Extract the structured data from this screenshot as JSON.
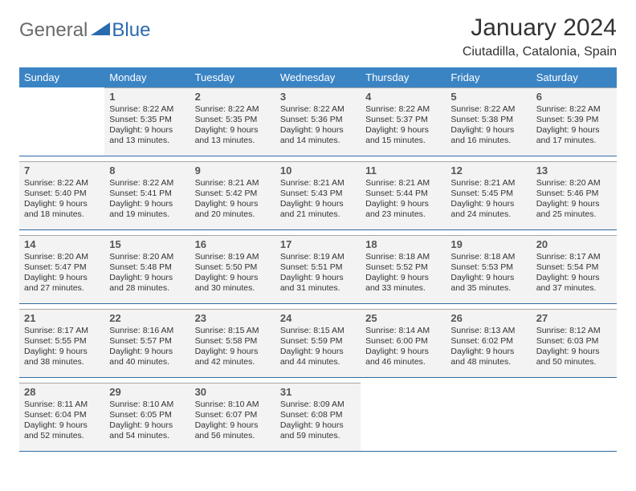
{
  "brand": {
    "general": "General",
    "blue": "Blue"
  },
  "title": "January 2024",
  "location": "Ciutadilla, Catalonia, Spain",
  "colors": {
    "header_bg": "#3b84c4",
    "header_text": "#ffffff",
    "cell_bg": "#f3f3f3",
    "cell_border_top": "#a7a7a7",
    "cell_border_bottom": "#2f6aa3",
    "text": "#333333",
    "logo_gray": "#6a6a6a",
    "logo_blue": "#2a6bb0"
  },
  "dayNames": [
    "Sunday",
    "Monday",
    "Tuesday",
    "Wednesday",
    "Thursday",
    "Friday",
    "Saturday"
  ],
  "weeks": [
    [
      null,
      {
        "n": "1",
        "sr": "Sunrise: 8:22 AM",
        "ss": "Sunset: 5:35 PM",
        "d1": "Daylight: 9 hours",
        "d2": "and 13 minutes."
      },
      {
        "n": "2",
        "sr": "Sunrise: 8:22 AM",
        "ss": "Sunset: 5:35 PM",
        "d1": "Daylight: 9 hours",
        "d2": "and 13 minutes."
      },
      {
        "n": "3",
        "sr": "Sunrise: 8:22 AM",
        "ss": "Sunset: 5:36 PM",
        "d1": "Daylight: 9 hours",
        "d2": "and 14 minutes."
      },
      {
        "n": "4",
        "sr": "Sunrise: 8:22 AM",
        "ss": "Sunset: 5:37 PM",
        "d1": "Daylight: 9 hours",
        "d2": "and 15 minutes."
      },
      {
        "n": "5",
        "sr": "Sunrise: 8:22 AM",
        "ss": "Sunset: 5:38 PM",
        "d1": "Daylight: 9 hours",
        "d2": "and 16 minutes."
      },
      {
        "n": "6",
        "sr": "Sunrise: 8:22 AM",
        "ss": "Sunset: 5:39 PM",
        "d1": "Daylight: 9 hours",
        "d2": "and 17 minutes."
      }
    ],
    [
      {
        "n": "7",
        "sr": "Sunrise: 8:22 AM",
        "ss": "Sunset: 5:40 PM",
        "d1": "Daylight: 9 hours",
        "d2": "and 18 minutes."
      },
      {
        "n": "8",
        "sr": "Sunrise: 8:22 AM",
        "ss": "Sunset: 5:41 PM",
        "d1": "Daylight: 9 hours",
        "d2": "and 19 minutes."
      },
      {
        "n": "9",
        "sr": "Sunrise: 8:21 AM",
        "ss": "Sunset: 5:42 PM",
        "d1": "Daylight: 9 hours",
        "d2": "and 20 minutes."
      },
      {
        "n": "10",
        "sr": "Sunrise: 8:21 AM",
        "ss": "Sunset: 5:43 PM",
        "d1": "Daylight: 9 hours",
        "d2": "and 21 minutes."
      },
      {
        "n": "11",
        "sr": "Sunrise: 8:21 AM",
        "ss": "Sunset: 5:44 PM",
        "d1": "Daylight: 9 hours",
        "d2": "and 23 minutes."
      },
      {
        "n": "12",
        "sr": "Sunrise: 8:21 AM",
        "ss": "Sunset: 5:45 PM",
        "d1": "Daylight: 9 hours",
        "d2": "and 24 minutes."
      },
      {
        "n": "13",
        "sr": "Sunrise: 8:20 AM",
        "ss": "Sunset: 5:46 PM",
        "d1": "Daylight: 9 hours",
        "d2": "and 25 minutes."
      }
    ],
    [
      {
        "n": "14",
        "sr": "Sunrise: 8:20 AM",
        "ss": "Sunset: 5:47 PM",
        "d1": "Daylight: 9 hours",
        "d2": "and 27 minutes."
      },
      {
        "n": "15",
        "sr": "Sunrise: 8:20 AM",
        "ss": "Sunset: 5:48 PM",
        "d1": "Daylight: 9 hours",
        "d2": "and 28 minutes."
      },
      {
        "n": "16",
        "sr": "Sunrise: 8:19 AM",
        "ss": "Sunset: 5:50 PM",
        "d1": "Daylight: 9 hours",
        "d2": "and 30 minutes."
      },
      {
        "n": "17",
        "sr": "Sunrise: 8:19 AM",
        "ss": "Sunset: 5:51 PM",
        "d1": "Daylight: 9 hours",
        "d2": "and 31 minutes."
      },
      {
        "n": "18",
        "sr": "Sunrise: 8:18 AM",
        "ss": "Sunset: 5:52 PM",
        "d1": "Daylight: 9 hours",
        "d2": "and 33 minutes."
      },
      {
        "n": "19",
        "sr": "Sunrise: 8:18 AM",
        "ss": "Sunset: 5:53 PM",
        "d1": "Daylight: 9 hours",
        "d2": "and 35 minutes."
      },
      {
        "n": "20",
        "sr": "Sunrise: 8:17 AM",
        "ss": "Sunset: 5:54 PM",
        "d1": "Daylight: 9 hours",
        "d2": "and 37 minutes."
      }
    ],
    [
      {
        "n": "21",
        "sr": "Sunrise: 8:17 AM",
        "ss": "Sunset: 5:55 PM",
        "d1": "Daylight: 9 hours",
        "d2": "and 38 minutes."
      },
      {
        "n": "22",
        "sr": "Sunrise: 8:16 AM",
        "ss": "Sunset: 5:57 PM",
        "d1": "Daylight: 9 hours",
        "d2": "and 40 minutes."
      },
      {
        "n": "23",
        "sr": "Sunrise: 8:15 AM",
        "ss": "Sunset: 5:58 PM",
        "d1": "Daylight: 9 hours",
        "d2": "and 42 minutes."
      },
      {
        "n": "24",
        "sr": "Sunrise: 8:15 AM",
        "ss": "Sunset: 5:59 PM",
        "d1": "Daylight: 9 hours",
        "d2": "and 44 minutes."
      },
      {
        "n": "25",
        "sr": "Sunrise: 8:14 AM",
        "ss": "Sunset: 6:00 PM",
        "d1": "Daylight: 9 hours",
        "d2": "and 46 minutes."
      },
      {
        "n": "26",
        "sr": "Sunrise: 8:13 AM",
        "ss": "Sunset: 6:02 PM",
        "d1": "Daylight: 9 hours",
        "d2": "and 48 minutes."
      },
      {
        "n": "27",
        "sr": "Sunrise: 8:12 AM",
        "ss": "Sunset: 6:03 PM",
        "d1": "Daylight: 9 hours",
        "d2": "and 50 minutes."
      }
    ],
    [
      {
        "n": "28",
        "sr": "Sunrise: 8:11 AM",
        "ss": "Sunset: 6:04 PM",
        "d1": "Daylight: 9 hours",
        "d2": "and 52 minutes."
      },
      {
        "n": "29",
        "sr": "Sunrise: 8:10 AM",
        "ss": "Sunset: 6:05 PM",
        "d1": "Daylight: 9 hours",
        "d2": "and 54 minutes."
      },
      {
        "n": "30",
        "sr": "Sunrise: 8:10 AM",
        "ss": "Sunset: 6:07 PM",
        "d1": "Daylight: 9 hours",
        "d2": "and 56 minutes."
      },
      {
        "n": "31",
        "sr": "Sunrise: 8:09 AM",
        "ss": "Sunset: 6:08 PM",
        "d1": "Daylight: 9 hours",
        "d2": "and 59 minutes."
      },
      null,
      null,
      null
    ]
  ]
}
